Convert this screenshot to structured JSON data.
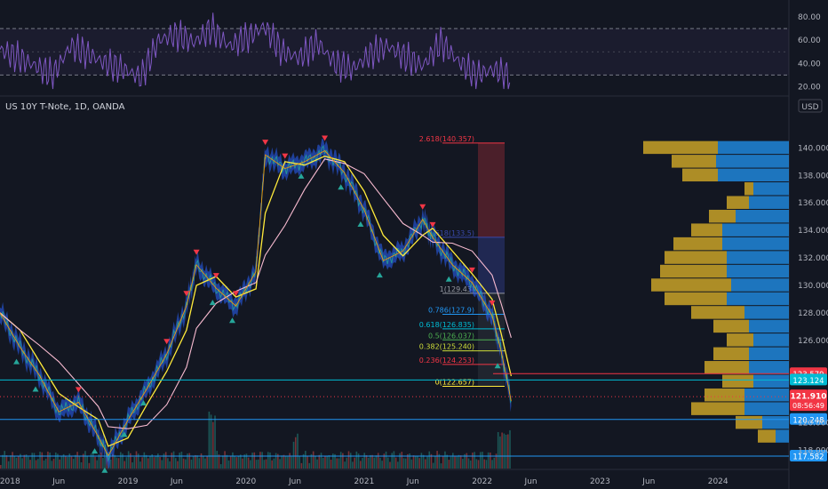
{
  "chart_data": {
    "type": "line",
    "instrument": "US 10Y T-Note, 1D, OANDA",
    "currency": "USD",
    "price_axis": {
      "ticks": [
        "140.000",
        "138.000",
        "136.000",
        "134.000",
        "132.000",
        "130.000",
        "128.000",
        "126.000",
        "120.000",
        "118.000"
      ],
      "range": [
        117.0,
        143.0
      ]
    },
    "time_axis": {
      "ticks": [
        "2018",
        "Jun",
        "2019",
        "Jun",
        "2020",
        "Jun",
        "2021",
        "Jun",
        "2022",
        "Jun",
        "2023",
        "Jun",
        "2024"
      ]
    },
    "price_series": {
      "dates": [
        "2017-12",
        "2018-02",
        "2018-04",
        "2018-06",
        "2018-08",
        "2018-10",
        "2018-11",
        "2019-01",
        "2019-03",
        "2019-05",
        "2019-07",
        "2019-08",
        "2019-10",
        "2019-12",
        "2020-02",
        "2020-03",
        "2020-05",
        "2020-07",
        "2020-09",
        "2020-11",
        "2021-01",
        "2021-03",
        "2021-05",
        "2021-07",
        "2021-08",
        "2021-10",
        "2021-12",
        "2022-02",
        "2022-03",
        "2022-04"
      ],
      "values": [
        128.0,
        125.5,
        123.5,
        120.8,
        121.5,
        119.0,
        117.6,
        120.2,
        122.5,
        125.0,
        128.5,
        131.5,
        129.8,
        128.5,
        131.0,
        139.5,
        138.5,
        139.0,
        139.8,
        138.2,
        135.5,
        131.8,
        132.5,
        134.8,
        133.5,
        131.5,
        130.2,
        127.8,
        125.2,
        121.6
      ]
    },
    "current_price": "121.910",
    "countdown": "08:56:49",
    "price_markers": [
      {
        "label": "123.579",
        "color": "#f23645"
      },
      {
        "label": "123.124",
        "color": "#00bcd4"
      },
      {
        "label": "120.248",
        "color": "#2196f3"
      },
      {
        "label": "117.582",
        "color": "#2196f3"
      }
    ],
    "fibonacci": [
      {
        "label": "2.618(140.357)",
        "color": "#f23645"
      },
      {
        "label": "1.618(133.5)",
        "color": "#3949ab"
      },
      {
        "label": "1(129.43)",
        "color": "#9598a1"
      },
      {
        "label": "0.786(127.9)",
        "color": "#2196f3"
      },
      {
        "label": "0.618(126.835)",
        "color": "#00bcd4"
      },
      {
        "label": "0.5(126.037)",
        "color": "#4caf50"
      },
      {
        "label": "0.382(125.240)",
        "color": "#cddc39"
      },
      {
        "label": "0.236(124.253)",
        "color": "#f23645"
      },
      {
        "label": "0(122.657)",
        "color": "#ffeb3b"
      }
    ],
    "rsi": {
      "ticks": [
        "80.00",
        "60.00",
        "40.00",
        "20.00"
      ],
      "range": [
        15,
        90
      ],
      "values": [
        52,
        45,
        38,
        30,
        55,
        48,
        40,
        35,
        28,
        60,
        65,
        58,
        70,
        55,
        62,
        72,
        50,
        45,
        58,
        40,
        35,
        48,
        55,
        45,
        38,
        58,
        42,
        30,
        35,
        28
      ]
    },
    "volume_profile": [
      {
        "price": 140.0,
        "up": 84,
        "down": 80
      },
      {
        "price": 139.0,
        "up": 50,
        "down": 82
      },
      {
        "price": 138.0,
        "up": 40,
        "down": 80
      },
      {
        "price": 137.0,
        "up": 10,
        "down": 40
      },
      {
        "price": 136.0,
        "up": 25,
        "down": 45
      },
      {
        "price": 135.0,
        "up": 30,
        "down": 60
      },
      {
        "price": 134.0,
        "up": 35,
        "down": 75
      },
      {
        "price": 133.0,
        "up": 55,
        "down": 75
      },
      {
        "price": 132.0,
        "up": 70,
        "down": 70
      },
      {
        "price": 131.0,
        "up": 75,
        "down": 70
      },
      {
        "price": 130.0,
        "up": 90,
        "down": 65
      },
      {
        "price": 129.0,
        "up": 70,
        "down": 70
      },
      {
        "price": 128.0,
        "up": 60,
        "down": 50
      },
      {
        "price": 127.0,
        "up": 40,
        "down": 45
      },
      {
        "price": 126.0,
        "up": 30,
        "down": 40
      },
      {
        "price": 125.0,
        "up": 40,
        "down": 45
      },
      {
        "price": 124.0,
        "up": 50,
        "down": 45
      },
      {
        "price": 123.0,
        "up": 35,
        "down": 40
      },
      {
        "price": 122.0,
        "up": 45,
        "down": 50
      },
      {
        "price": 121.0,
        "up": 60,
        "down": 50
      },
      {
        "price": 120.0,
        "up": 30,
        "down": 30
      },
      {
        "price": 119.0,
        "up": 20,
        "down": 15
      }
    ]
  }
}
